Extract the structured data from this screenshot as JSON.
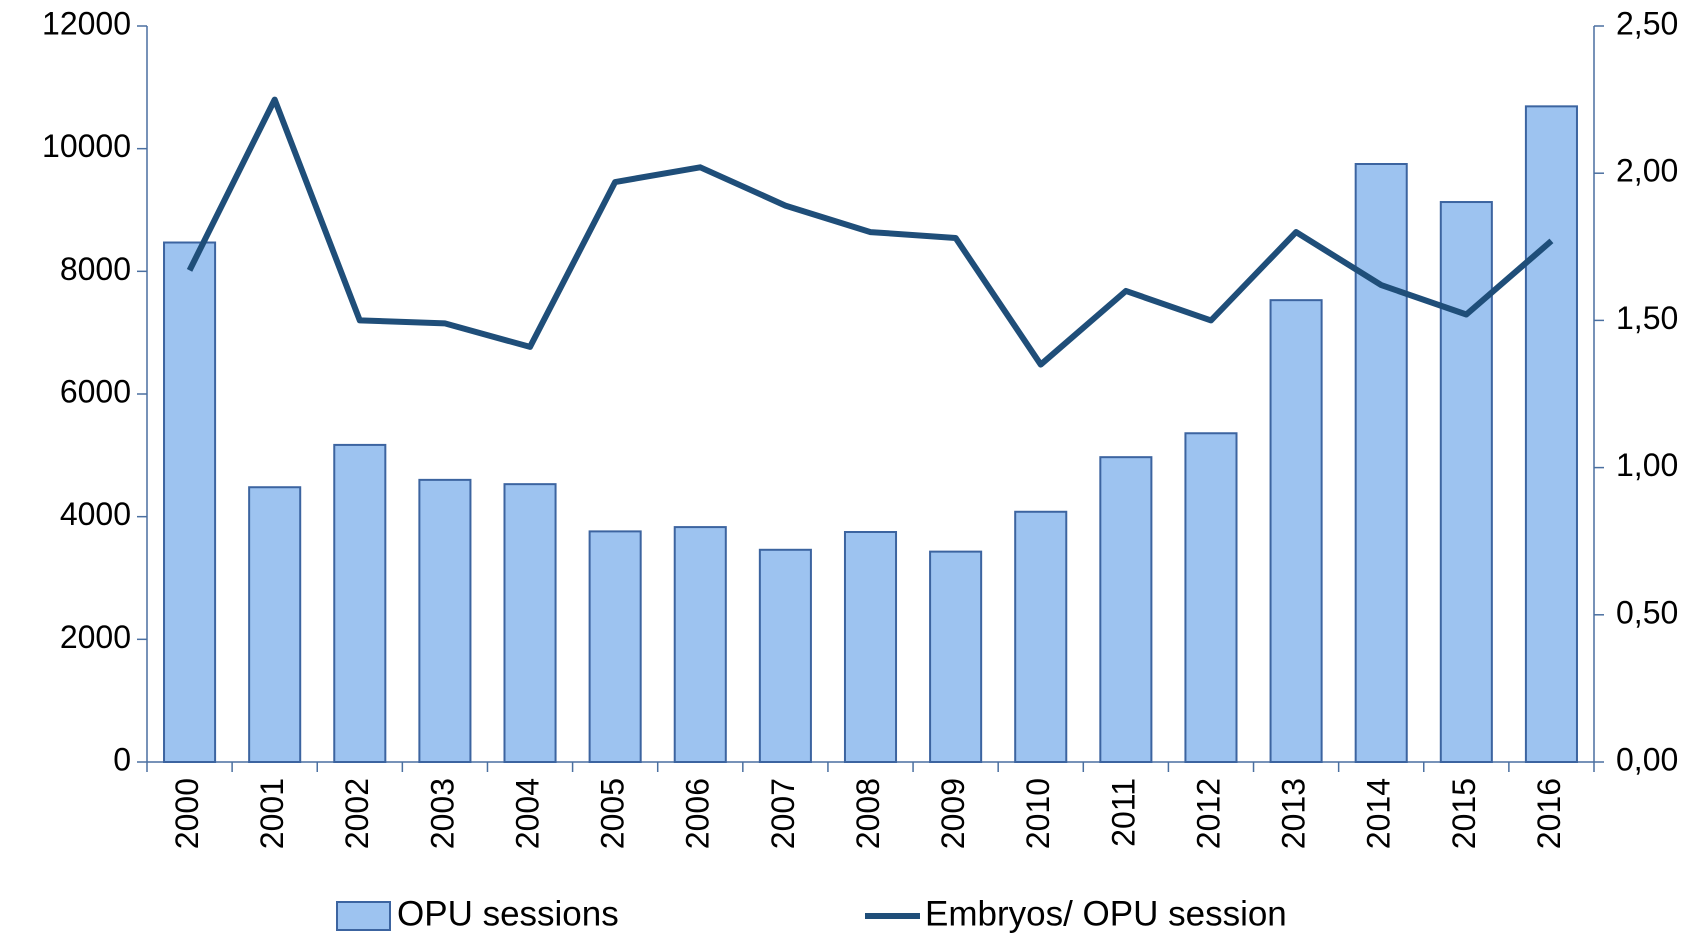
{
  "chart_data": {
    "type": "bar_line",
    "categories": [
      "2000",
      "2001",
      "2002",
      "2003",
      "2004",
      "2005",
      "2006",
      "2007",
      "2008",
      "2009",
      "2010",
      "2011",
      "2012",
      "2013",
      "2014",
      "2015",
      "2016"
    ],
    "series": [
      {
        "name": "OPU sessions",
        "type": "bar",
        "color": "#9dc3f0",
        "edge": "#3c64a0",
        "values": [
          8470,
          4480,
          5170,
          4600,
          4530,
          3760,
          3830,
          3460,
          3750,
          3430,
          4080,
          4970,
          5360,
          7530,
          9750,
          9130,
          10690
        ]
      },
      {
        "name": "Embryos/ OPU session",
        "type": "line",
        "axis": "y2",
        "color": "#1f4e79",
        "values": [
          1.67,
          2.25,
          1.5,
          1.49,
          1.41,
          1.97,
          2.02,
          1.89,
          1.8,
          1.78,
          1.35,
          1.6,
          1.5,
          1.8,
          1.62,
          1.52,
          1.77
        ]
      }
    ],
    "ylim": [
      0,
      12000
    ],
    "yticks": [
      0,
      2000,
      4000,
      6000,
      8000,
      10000,
      12000
    ],
    "y2lim": [
      0,
      2.5
    ],
    "y2ticks": [
      {
        "value": 0,
        "label": "0,00"
      },
      {
        "value": 0.5,
        "label": "0,50"
      },
      {
        "value": 1,
        "label": "1,00"
      },
      {
        "value": 1.5,
        "label": "1,50"
      },
      {
        "value": 2,
        "label": "2,00"
      },
      {
        "value": 2.5,
        "label": "2,50"
      }
    ],
    "legend": "bottom"
  }
}
